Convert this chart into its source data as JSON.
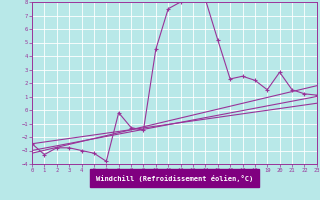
{
  "xlabel": "Windchill (Refroidissement éolien,°C)",
  "xlim": [
    0,
    23
  ],
  "ylim": [
    -4,
    8
  ],
  "xticks": [
    0,
    1,
    2,
    3,
    4,
    5,
    6,
    7,
    8,
    9,
    10,
    11,
    12,
    13,
    14,
    15,
    16,
    17,
    18,
    19,
    20,
    21,
    22,
    23
  ],
  "yticks": [
    -4,
    -3,
    -2,
    -1,
    0,
    1,
    2,
    3,
    4,
    5,
    6,
    7,
    8
  ],
  "bg_color": "#b8e8e8",
  "line_color": "#993399",
  "xlabel_bg": "#800080",
  "grid_color": "#ffffff",
  "curve_x": [
    0,
    1,
    2,
    3,
    4,
    5,
    6,
    7,
    8,
    9,
    10,
    11,
    12,
    13,
    14,
    15,
    16,
    17,
    18,
    19,
    20,
    21,
    22,
    23
  ],
  "curve_y": [
    -2.5,
    -3.3,
    -2.8,
    -2.8,
    -3.0,
    -3.2,
    -3.8,
    -0.2,
    -1.3,
    -1.5,
    4.5,
    7.5,
    8.0,
    8.2,
    8.2,
    5.2,
    2.3,
    2.5,
    2.2,
    1.5,
    2.8,
    1.5,
    1.2,
    1.1
  ],
  "line2_x": [
    0,
    23
  ],
  "line2_y": [
    -3.2,
    1.8
  ],
  "line3_x": [
    0,
    23
  ],
  "line3_y": [
    -3.0,
    1.0
  ],
  "line4_x": [
    0,
    23
  ],
  "line4_y": [
    -2.5,
    0.5
  ]
}
